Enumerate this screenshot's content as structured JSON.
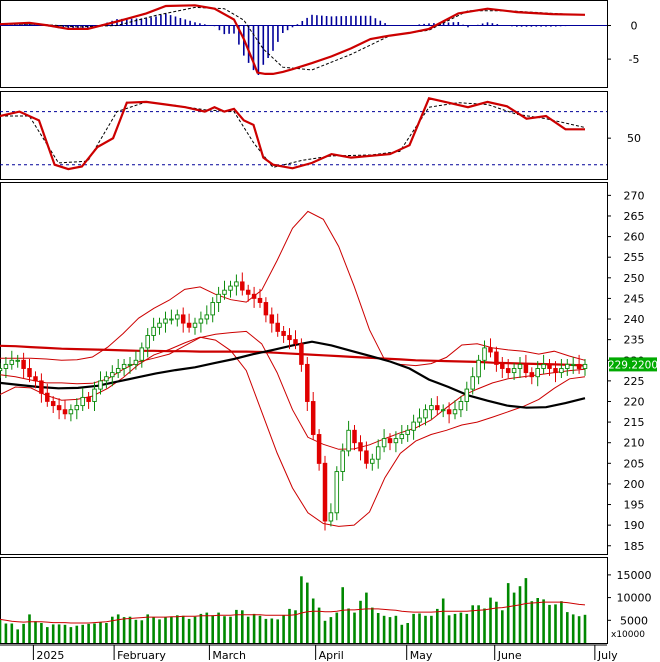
{
  "chart_data": [
    {
      "panel": "macd",
      "type": "line",
      "ylim": [
        -9,
        3.2
      ],
      "yticks": [
        "0",
        "-5"
      ],
      "ytick_values": [
        0,
        -5
      ],
      "macd_x": [
        0,
        15,
        25,
        35,
        45,
        60,
        75,
        85,
        100,
        110,
        120,
        125,
        130,
        132,
        136,
        140,
        145,
        150,
        160,
        170,
        180,
        190,
        200,
        210,
        220,
        235,
        250,
        265,
        283,
        300
      ],
      "macd": [
        0.2,
        0.4,
        0,
        -0.5,
        -0.5,
        0.6,
        1.8,
        2.9,
        3.0,
        2.5,
        0.9,
        -2.0,
        -5.5,
        -7.0,
        -7.2,
        -7.2,
        -6.9,
        -6.5,
        -5.6,
        -4.6,
        -3.4,
        -2.0,
        -1.5,
        -1.1,
        -0.5,
        1.8,
        2.5,
        2.0,
        1.7,
        1.6
      ],
      "signal_x": [
        0,
        20,
        40,
        60,
        80,
        100,
        115,
        125,
        135,
        145,
        160,
        180,
        200,
        220,
        240,
        260,
        283,
        300
      ],
      "signal": [
        0.2,
        0.2,
        -0.2,
        0,
        1.5,
        2.7,
        2.5,
        0.8,
        -3.5,
        -6.2,
        -6.6,
        -4.3,
        -1.5,
        -0.7,
        2.2,
        2.2,
        1.8,
        1.6
      ],
      "legend": "none",
      "grid": false
    },
    {
      "panel": "stochastic",
      "type": "line",
      "ylim": [
        5,
        101
      ],
      "yticks": [
        "50"
      ],
      "ytick_values": [
        50
      ],
      "levels": [
        80,
        20
      ],
      "k_x": [
        0,
        10,
        20,
        28,
        35,
        42,
        50,
        58,
        65,
        75,
        85,
        95,
        105,
        110,
        115,
        120,
        125,
        130,
        135,
        140,
        150,
        160,
        170,
        180,
        200,
        210,
        220,
        230,
        240,
        250,
        260,
        270,
        280,
        290,
        300
      ],
      "k": [
        75,
        80,
        70,
        20,
        15,
        18,
        40,
        50,
        90,
        91,
        88,
        85,
        80,
        85,
        80,
        83,
        70,
        65,
        28,
        20,
        16,
        22,
        32,
        28,
        32,
        42,
        95,
        90,
        85,
        91,
        86,
        72,
        75,
        60,
        60
      ],
      "d_x": [
        0,
        15,
        30,
        45,
        60,
        75,
        90,
        105,
        120,
        130,
        140,
        155,
        170,
        190,
        205,
        220,
        235,
        250,
        265,
        280,
        300
      ],
      "d": [
        75,
        75,
        22,
        24,
        80,
        91,
        87,
        82,
        80,
        45,
        17,
        25,
        30,
        31,
        35,
        85,
        90,
        88,
        77,
        72,
        62
      ],
      "legend": "none",
      "grid": false
    },
    {
      "panel": "price",
      "type": "candlestick",
      "ylim": [
        183,
        273
      ],
      "yticks": [
        "270",
        "265",
        "260",
        "255",
        "250",
        "245",
        "240",
        "235",
        "230",
        "225",
        "220",
        "215",
        "210",
        "205",
        "200",
        "195",
        "190",
        "185"
      ],
      "ytick_values": [
        270,
        265,
        260,
        255,
        250,
        245,
        240,
        235,
        230,
        225,
        220,
        215,
        210,
        205,
        200,
        195,
        190,
        185
      ],
      "last_price_label": "229.2200",
      "closes": [
        228,
        229,
        230,
        230,
        228,
        226,
        225,
        222,
        220,
        219,
        218,
        217,
        218,
        219,
        221,
        220,
        223,
        225,
        226,
        227,
        228,
        229,
        229,
        230,
        233,
        236,
        238,
        239,
        240,
        240,
        241,
        239,
        238,
        239,
        240,
        241,
        244,
        246,
        247,
        248,
        249,
        247,
        246,
        245,
        244,
        241,
        239,
        237,
        236,
        235,
        234,
        229,
        220,
        212,
        205,
        191,
        193,
        203,
        208,
        213,
        210,
        208,
        205,
        206,
        209,
        211,
        210,
        211,
        212,
        213,
        215,
        216,
        218,
        219,
        218,
        218,
        217,
        218,
        220,
        223,
        226,
        230,
        233,
        232,
        229,
        228,
        227,
        228,
        229,
        227,
        226,
        228,
        229,
        228,
        227,
        228,
        229,
        229,
        228,
        229
      ],
      "ma_long": [
        233.5,
        233.4,
        233.2,
        233.0,
        232.8,
        232.7,
        232.6,
        232.5,
        232.4,
        232.3,
        232.3,
        232.2,
        232.2,
        232.1,
        232.1,
        232.1,
        232.1,
        232.0,
        231.8,
        231.6,
        231.4,
        231.2,
        231.0,
        230.8,
        230.6,
        230.4,
        230.2,
        230.0,
        229.9,
        229.8,
        229.7,
        229.6,
        229.4,
        229.3,
        229.2,
        229.1,
        229.0,
        228.9,
        228.7
      ],
      "ma_mid": [
        224.5,
        224.0,
        223.5,
        223.2,
        223.3,
        223.8,
        224.8,
        225.8,
        226.8,
        227.6,
        228.3,
        229.3,
        230.3,
        231.5,
        232.5,
        233.6,
        234.5,
        233.6,
        232.3,
        231.0,
        229.7,
        228.0,
        225.3,
        223.5,
        221.5,
        220.2,
        219.0,
        218.5,
        218.6,
        219.6,
        220.8
      ],
      "bb_upper": [
        230.5,
        230.5,
        230.5,
        230.3,
        230.0,
        230.1,
        230.8,
        233.2,
        236.5,
        240.2,
        242.6,
        244.6,
        247.2,
        247.8,
        246.0,
        244.7,
        244.1,
        247.0,
        254.2,
        262.0,
        266.1,
        264.2,
        257.6,
        248.0,
        237.4,
        230.0,
        229.0,
        228.7,
        229.2,
        230.7,
        233.7,
        234.0,
        233.0,
        232.5,
        232.2,
        231.5,
        232.2,
        231.0,
        230.0
      ],
      "bb_lower": [
        221.7,
        223.5,
        223.3,
        221.5,
        220.3,
        220.5,
        221.3,
        223.2,
        225.8,
        229.0,
        231.3,
        232.6,
        234.2,
        235.6,
        234.9,
        232.3,
        227.5,
        217.5,
        207.5,
        199.0,
        193.0,
        190.4,
        189.7,
        190.0,
        193.2,
        201.5,
        207.4,
        210.4,
        212.0,
        213.0,
        214.3,
        215.0,
        216.2,
        217.5,
        218.8,
        220.5,
        223.2,
        225.5,
        226.0
      ],
      "bb_mid": [
        226.5,
        226.0,
        225.2,
        224.5,
        224.5,
        224.3,
        224.4,
        225.5,
        227.8,
        229.6,
        230.5,
        231.5,
        233.5,
        235.5,
        236.3,
        236.7,
        237.0,
        234.0,
        227.0,
        218.0,
        211.3,
        209.6,
        208.4,
        208.5,
        209.5,
        211.0,
        212.4,
        213.6,
        215.5,
        218.5,
        221.3,
        223.0,
        224.5,
        225.5,
        226.0,
        226.5,
        227.0,
        227.5,
        227.8
      ],
      "legend": "none",
      "grid": false
    },
    {
      "panel": "volume",
      "type": "bar",
      "ylim": [
        0,
        18500
      ],
      "yticks": [
        "15000",
        "10000",
        "5000"
      ],
      "ytick_values": [
        15000,
        10000,
        5000
      ],
      "unit_label": "x10000",
      "values": [
        5200,
        4300,
        4300,
        3000,
        4200,
        6300,
        4800,
        4400,
        3500,
        4100,
        4100,
        4000,
        3500,
        3800,
        4000,
        4200,
        4300,
        4600,
        4400,
        5800,
        6300,
        5700,
        5800,
        5100,
        5000,
        6300,
        5700,
        5200,
        5700,
        5800,
        6100,
        6000,
        5300,
        5800,
        6400,
        6700,
        6100,
        6700,
        5900,
        5800,
        7300,
        7200,
        5800,
        6400,
        6000,
        5300,
        5400,
        5200,
        6100,
        7500,
        7200,
        14700,
        13300,
        9800,
        7800,
        4900,
        5700,
        6700,
        12300,
        7600,
        6700,
        9300,
        11100,
        7800,
        6600,
        6000,
        5700,
        6000,
        4000,
        4400,
        6400,
        6500,
        6000,
        6000,
        7500,
        9800,
        6100,
        6400,
        6700,
        6400,
        8300,
        8300,
        7600,
        10000,
        9100,
        7200,
        13200,
        11100,
        12500,
        14300,
        9200,
        9900,
        9600,
        8400,
        8500,
        9200,
        6800,
        6300,
        5900,
        6200
      ],
      "ma": [
        5200,
        5000,
        4800,
        4700,
        4600,
        4700,
        4700,
        4700,
        4600,
        4500,
        4500,
        4500,
        4400,
        4400,
        4400,
        4400,
        4500,
        4600,
        4700,
        4900,
        5100,
        5300,
        5400,
        5500,
        5600,
        5700,
        5700,
        5700,
        5700,
        5800,
        5800,
        5900,
        5900,
        5900,
        6000,
        6000,
        6000,
        6100,
        6100,
        6100,
        6200,
        6200,
        6200,
        6200,
        6200,
        6100,
        6100,
        6100,
        6100,
        6100,
        6200,
        6600,
        6900,
        7000,
        7000,
        6900,
        6900,
        7000,
        7200,
        7300,
        7300,
        7400,
        7500,
        7500,
        7500,
        7400,
        7300,
        7200,
        7000,
        6900,
        6800,
        6800,
        6800,
        6800,
        6900,
        7000,
        7000,
        7000,
        7000,
        7000,
        7100,
        7200,
        7300,
        7500,
        7700,
        7800,
        8000,
        8200,
        8400,
        8700,
        8800,
        8900,
        9000,
        9000,
        9000,
        9000,
        8900,
        8700,
        8500,
        8400
      ],
      "legend": "none",
      "grid": false
    },
    {
      "panel": "date_axis",
      "type": "axis",
      "months": [
        {
          "label": "2025",
          "t": 0.055
        },
        {
          "label": "February",
          "t": 0.188
        },
        {
          "label": "March",
          "t": 0.345
        },
        {
          "label": "April",
          "t": 0.52
        },
        {
          "label": "May",
          "t": 0.67
        },
        {
          "label": "June",
          "t": 0.815
        },
        {
          "label": "July",
          "t": 0.98
        }
      ]
    }
  ],
  "colors": {
    "up": "#0a8a0a",
    "down": "#e00000",
    "ma_red": "#cc0000",
    "ma_black": "#000000",
    "macd_hist": "#000099",
    "volume": "#008800",
    "level_line": "#000099",
    "price_label_bg": "#00aa00"
  }
}
